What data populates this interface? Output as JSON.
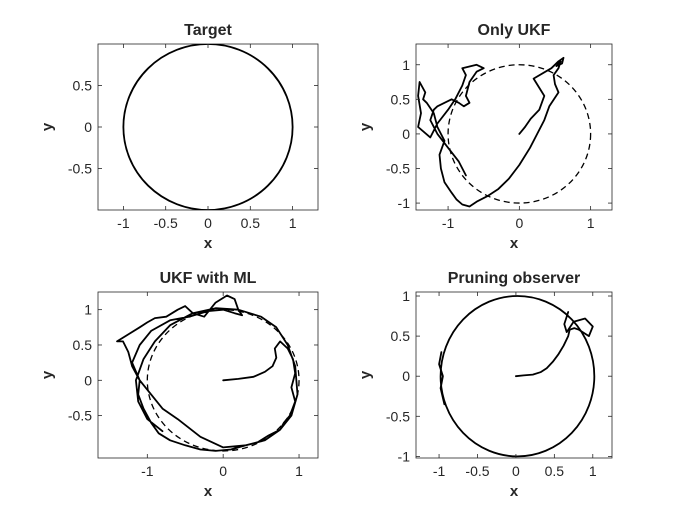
{
  "chart_data": [
    {
      "type": "line",
      "title": "Target",
      "xlabel": "x",
      "ylabel": "y",
      "xlim": [
        -1.3,
        1.3
      ],
      "ylim": [
        -1,
        1
      ],
      "xticks": [
        -1,
        -0.5,
        0,
        0.5,
        1
      ],
      "xtick_labels": [
        "-1",
        "-0.5",
        "0",
        "0.5",
        "1"
      ],
      "yticks": [
        -0.5,
        0,
        0.5
      ],
      "ytick_labels": [
        "-0.5",
        "0",
        "0.5"
      ],
      "grid": false,
      "series": [
        {
          "style": "solid",
          "shape": "circle",
          "center": [
            0,
            0
          ],
          "radius": 1
        }
      ]
    },
    {
      "type": "line",
      "title": "Only UKF",
      "xlabel": "x",
      "ylabel": "y",
      "xlim": [
        -1.45,
        1.3
      ],
      "ylim": [
        -1.1,
        1.3
      ],
      "xticks": [
        -1,
        0,
        1
      ],
      "xtick_labels": [
        "-1",
        "0",
        "1"
      ],
      "yticks": [
        -1,
        -0.5,
        0,
        0.5,
        1
      ],
      "ytick_labels": [
        "-1",
        "-0.5",
        "0",
        "0.5",
        "1"
      ],
      "grid": false,
      "series": [
        {
          "style": "dashed",
          "shape": "circle",
          "center": [
            0,
            0
          ],
          "radius": 1
        },
        {
          "style": "solid",
          "shape": "path",
          "x": [
            0,
            0.08,
            0.16,
            0.28,
            0.35,
            0.2,
            0.45,
            0.55,
            0.62,
            0.6,
            0.52,
            0.58,
            0.55,
            0.48,
            0.5,
            0.55,
            0.42,
            0.35,
            0.25,
            0.15,
            0.0,
            -0.15,
            -0.3,
            -0.45,
            -0.6,
            -0.7,
            -0.8,
            -0.88,
            -0.95,
            -1.05,
            -1.1,
            -1.12,
            -1.05,
            -1.15,
            -1.2,
            -1.3,
            -1.35,
            -1.32,
            -1.4,
            -1.42,
            -1.38,
            -1.42,
            -1.25,
            -1.15,
            -1.0,
            -0.9,
            -0.8,
            -0.75,
            -0.8,
            -0.6,
            -0.5,
            -0.6,
            -0.7,
            -0.75,
            -0.7,
            -0.78,
            -0.85,
            -0.95,
            -1.05,
            -1.15,
            -1.2,
            -1.25,
            -1.15,
            -1.0,
            -0.85,
            -0.75
          ],
          "y": [
            0,
            0.1,
            0.22,
            0.35,
            0.55,
            0.8,
            0.95,
            1.05,
            1.1,
            1.02,
            0.98,
            1.05,
            0.95,
            0.85,
            0.72,
            0.6,
            0.4,
            0.2,
            0.0,
            -0.2,
            -0.45,
            -0.65,
            -0.8,
            -0.9,
            -0.98,
            -1.05,
            -1.02,
            -0.95,
            -0.85,
            -0.7,
            -0.5,
            -0.3,
            -0.1,
            0.1,
            0.3,
            0.45,
            0.5,
            0.6,
            0.75,
            0.55,
            0.3,
            0.1,
            -0.05,
            0.15,
            0.35,
            0.5,
            0.7,
            0.85,
            0.95,
            1.0,
            0.95,
            0.9,
            0.75,
            0.55,
            0.45,
            0.4,
            0.45,
            0.5,
            0.45,
            0.4,
            0.35,
            0.2,
            0.0,
            -0.2,
            -0.4,
            -0.6
          ]
        }
      ]
    },
    {
      "type": "line",
      "title": "UKF with ML",
      "xlabel": "x",
      "ylabel": "y",
      "xlim": [
        -1.65,
        1.25
      ],
      "ylim": [
        -1.1,
        1.25
      ],
      "xticks": [
        -1,
        0,
        1
      ],
      "xtick_labels": [
        "-1",
        "0",
        "1"
      ],
      "yticks": [
        -0.5,
        0,
        0.5,
        1
      ],
      "ytick_labels": [
        "-0.5",
        "0",
        "0.5",
        "1"
      ],
      "grid": false,
      "series": [
        {
          "style": "dashed",
          "shape": "circle",
          "center": [
            0,
            0
          ],
          "radius": 1
        },
        {
          "style": "solid",
          "shape": "path",
          "x": [
            0,
            0.2,
            0.4,
            0.55,
            0.65,
            0.7,
            0.68,
            0.75,
            0.85,
            0.92,
            0.95,
            0.9,
            0.95,
            0.88,
            0.8,
            0.75,
            0.6,
            0.45,
            0.3,
            0.1,
            -0.1,
            -0.3,
            -0.5,
            -0.7,
            -0.85,
            -0.95,
            -1.05,
            -1.12,
            -1.1,
            -1.2,
            -1.25,
            -1.32,
            -1.4,
            -1.25,
            -1.1,
            -1.0,
            -0.9,
            -0.75,
            -0.6,
            -0.5,
            -0.4,
            -0.25,
            -0.1,
            0.05,
            0.15,
            0.2,
            0.25,
            0.15,
            0.0,
            -0.2,
            -0.45,
            -0.7,
            -0.95,
            -1.1,
            -1.2,
            -1.1,
            -0.95,
            -0.8,
            -0.6,
            -0.3,
            0.0,
            0.3,
            0.55,
            0.75,
            0.9,
            0.98,
            0.95,
            0.85,
            0.7,
            0.5,
            0.2,
            -0.1,
            -0.4,
            -0.7,
            -0.9,
            -1.05,
            -1.15,
            -1.12,
            -1.0,
            -0.8
          ],
          "y": [
            0,
            0.02,
            0.05,
            0.12,
            0.2,
            0.32,
            0.45,
            0.55,
            0.45,
            0.3,
            0.1,
            -0.1,
            -0.3,
            -0.5,
            -0.6,
            -0.7,
            -0.78,
            -0.88,
            -0.92,
            -0.98,
            -1.0,
            -0.98,
            -0.92,
            -0.85,
            -0.75,
            -0.6,
            -0.4,
            -0.2,
            0.0,
            0.2,
            0.4,
            0.55,
            0.55,
            0.65,
            0.75,
            0.82,
            0.88,
            0.9,
            1.0,
            1.05,
            0.95,
            0.9,
            1.1,
            1.2,
            1.15,
            1.0,
            0.92,
            0.95,
            1.0,
            0.98,
            0.9,
            0.85,
            0.7,
            0.5,
            0.25,
            0.0,
            -0.2,
            -0.4,
            -0.55,
            -0.8,
            -0.95,
            -0.92,
            -0.85,
            -0.7,
            -0.5,
            -0.2,
            0.2,
            0.5,
            0.75,
            0.9,
            1.0,
            1.02,
            0.95,
            0.78,
            0.55,
            0.3,
            0.0,
            -0.3,
            -0.55,
            -0.72
          ]
        }
      ]
    },
    {
      "type": "line",
      "title": "Pruning observer",
      "xlabel": "x",
      "ylabel": "y",
      "xlim": [
        -1.3,
        1.25
      ],
      "ylim": [
        -1.02,
        1.05
      ],
      "xticks": [
        -1,
        -0.5,
        0,
        0.5,
        1
      ],
      "xtick_labels": [
        "-1",
        "-0.5",
        "0",
        "0.5",
        "1"
      ],
      "yticks": [
        -1,
        -0.5,
        0,
        0.5,
        1
      ],
      "ytick_labels": [
        "-1",
        "-0.5",
        "0",
        "0.5",
        "1"
      ],
      "grid": false,
      "series": [
        {
          "style": "solid",
          "shape": "circle",
          "center": [
            0.02,
            0
          ],
          "radius": 1.0
        },
        {
          "style": "solid",
          "shape": "path",
          "x": [
            0,
            0.1,
            0.22,
            0.32,
            0.4,
            0.48,
            0.55,
            0.62,
            0.68,
            0.7,
            0.76,
            0.82,
            0.95,
            1.0,
            0.9,
            0.75,
            0.66,
            0.63,
            0.68
          ],
          "y": [
            0,
            0.01,
            0.02,
            0.05,
            0.1,
            0.18,
            0.27,
            0.38,
            0.5,
            0.58,
            0.6,
            0.58,
            0.5,
            0.62,
            0.72,
            0.68,
            0.55,
            0.65,
            0.8
          ]
        },
        {
          "style": "solid",
          "shape": "path",
          "x": [
            -0.97,
            -1.0,
            -0.95,
            -0.98,
            -0.93
          ],
          "y": [
            0.3,
            0.15,
            0.0,
            -0.15,
            -0.35
          ]
        }
      ]
    }
  ]
}
